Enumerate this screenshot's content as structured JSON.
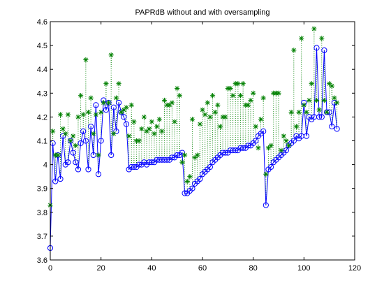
{
  "chart_data": {
    "type": "line",
    "title": "PAPRdB without and with oversampling",
    "xlabel": "",
    "ylabel": "",
    "xlim": [
      0,
      120
    ],
    "ylim": [
      3.6,
      4.6
    ],
    "x_ticks": [
      0,
      20,
      40,
      60,
      80,
      100,
      120
    ],
    "y_ticks": [
      3.6,
      3.7,
      3.8,
      3.9,
      4.0,
      4.1,
      4.2,
      4.3,
      4.4,
      4.5,
      4.6
    ],
    "x_tick_labels": [
      "0",
      "20",
      "40",
      "60",
      "80",
      "100",
      "120"
    ],
    "y_tick_labels": [
      "3.6",
      "3.7",
      "3.8",
      "3.9",
      "4",
      "4.1",
      "4.2",
      "4.3",
      "4.4",
      "4.5",
      "4.6"
    ],
    "grid": false,
    "legend": "none",
    "series": [
      {
        "style": "blue line with circle markers",
        "color": "#0000ff",
        "x": [
          0,
          1,
          2,
          3,
          4,
          5,
          6,
          7,
          8,
          9,
          10,
          11,
          12,
          13,
          14,
          15,
          16,
          17,
          18,
          19,
          20,
          21,
          22,
          23,
          24,
          25,
          26,
          27,
          28,
          29,
          30,
          31,
          32,
          33,
          34,
          35,
          36,
          37,
          38,
          39,
          40,
          41,
          42,
          43,
          44,
          45,
          46,
          47,
          48,
          49,
          50,
          51,
          52,
          53,
          54,
          55,
          56,
          57,
          58,
          59,
          60,
          61,
          62,
          63,
          64,
          65,
          66,
          67,
          68,
          69,
          70,
          71,
          72,
          73,
          74,
          75,
          76,
          77,
          78,
          79,
          80,
          81,
          82,
          83,
          84,
          85,
          86,
          87,
          88,
          89,
          90,
          91,
          92,
          93,
          94,
          95,
          96,
          97,
          98,
          99,
          100,
          101,
          102,
          103,
          104,
          105,
          106,
          107,
          108,
          109,
          110,
          111,
          112,
          113
        ],
        "values": [
          3.65,
          4.09,
          3.93,
          4.04,
          3.94,
          4.12,
          4.0,
          4.01,
          4.1,
          4.05,
          4.01,
          3.98,
          4.09,
          4.14,
          4.1,
          3.98,
          4.16,
          4.04,
          4.25,
          3.96,
          4.1,
          4.27,
          4.23,
          4.26,
          4.04,
          4.24,
          4.14,
          4.26,
          4.22,
          4.2,
          4.17,
          3.98,
          3.99,
          3.99,
          3.99,
          4.0,
          4.0,
          4.01,
          4.0,
          4.01,
          4.01,
          4.01,
          4.02,
          4.02,
          4.02,
          4.02,
          4.02,
          4.02,
          4.03,
          4.03,
          4.04,
          4.04,
          4.05,
          3.88,
          3.88,
          3.89,
          3.9,
          3.92,
          3.93,
          3.94,
          3.96,
          3.97,
          3.98,
          3.99,
          4.01,
          4.02,
          4.03,
          4.04,
          4.05,
          4.05,
          4.05,
          4.06,
          4.06,
          4.06,
          4.06,
          4.07,
          4.07,
          4.07,
          4.08,
          4.08,
          4.09,
          4.1,
          4.12,
          4.13,
          4.14,
          3.83,
          3.98,
          3.99,
          4.01,
          4.02,
          4.03,
          4.04,
          4.05,
          4.06,
          4.08,
          4.09,
          4.1,
          4.12,
          4.11,
          4.12,
          4.26,
          4.12,
          4.2,
          4.19,
          4.2,
          4.49,
          4.2,
          4.2,
          4.48,
          4.22,
          4.22,
          4.16,
          4.26,
          4.15
        ]
      },
      {
        "style": "green asterisk markers with dotted vertical connectors",
        "color": "#008000",
        "x": [
          0,
          1,
          2,
          3,
          4,
          5,
          6,
          7,
          8,
          9,
          10,
          11,
          12,
          13,
          14,
          15,
          16,
          17,
          18,
          19,
          20,
          21,
          22,
          23,
          24,
          25,
          26,
          27,
          28,
          29,
          30,
          31,
          32,
          33,
          34,
          35,
          36,
          37,
          38,
          39,
          40,
          41,
          42,
          43,
          44,
          45,
          46,
          47,
          48,
          49,
          50,
          51,
          52,
          53,
          54,
          55,
          56,
          57,
          58,
          59,
          60,
          61,
          62,
          63,
          64,
          65,
          66,
          67,
          68,
          69,
          70,
          71,
          72,
          73,
          74,
          75,
          76,
          77,
          78,
          79,
          80,
          81,
          82,
          83,
          84,
          85,
          86,
          87,
          88,
          89,
          90,
          91,
          92,
          93,
          94,
          95,
          96,
          97,
          98,
          99,
          100,
          101,
          102,
          103,
          104,
          105,
          106,
          107,
          108,
          109,
          110,
          111,
          112,
          113
        ],
        "values": [
          3.83,
          4.14,
          4.04,
          4.04,
          4.21,
          4.15,
          4.13,
          4.21,
          4.1,
          4.12,
          4.08,
          4.2,
          4.29,
          4.21,
          4.44,
          4.22,
          4.28,
          4.13,
          4.21,
          4.04,
          4.22,
          4.26,
          4.34,
          4.26,
          4.46,
          4.13,
          4.28,
          4.34,
          4.22,
          4.23,
          4.24,
          4.12,
          4.25,
          4.18,
          4.1,
          4.1,
          4.15,
          4.2,
          4.14,
          4.15,
          4.18,
          4.13,
          4.16,
          4.19,
          4.14,
          4.27,
          4.25,
          4.25,
          4.26,
          4.18,
          4.32,
          4.29,
          4.01,
          4.04,
          3.93,
          3.95,
          4.19,
          4.03,
          4.04,
          4.17,
          4.23,
          4.21,
          4.26,
          4.2,
          4.29,
          4.22,
          4.25,
          4.16,
          4.2,
          4.2,
          4.32,
          4.32,
          4.29,
          4.34,
          4.34,
          4.29,
          4.34,
          4.25,
          4.25,
          4.27,
          4.3,
          4.16,
          4.07,
          4.19,
          4.28,
          3.96,
          4.07,
          4.08,
          4.3,
          4.3,
          4.3,
          4.06,
          4.12,
          4.1,
          4.08,
          4.22,
          4.48,
          4.16,
          4.22,
          4.53,
          4.25,
          4.22,
          4.27,
          4.34,
          4.57,
          4.27,
          4.23,
          4.53,
          4.27,
          4.22,
          4.34,
          4.33,
          4.28,
          4.26
        ]
      }
    ]
  }
}
